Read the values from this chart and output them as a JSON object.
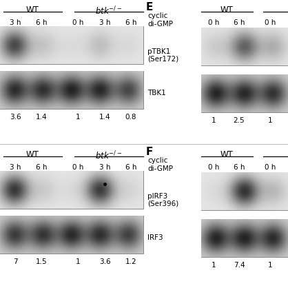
{
  "bg_color": "#ffffff",
  "fig_width": 4.18,
  "fig_height": 4.18,
  "dpi": 100,
  "left_top": {
    "wt_label": "WT",
    "btk_label": "btk⁻∕⁻",
    "tp_wt": [
      "3 h",
      "6 h"
    ],
    "tp_btk": [
      "0 h",
      "3 h",
      "6 h"
    ],
    "band1_intensities": [
      0.72,
      0.15,
      0.05,
      0.18,
      0.06
    ],
    "band2_intensities": [
      0.75,
      0.72,
      0.78,
      0.76,
      0.62
    ],
    "numbers": [
      "3.6",
      "1.4",
      "1",
      "1.4",
      "0.8"
    ]
  },
  "left_bottom": {
    "wt_label": "WT",
    "btk_label": "btk⁻∕⁻",
    "tp_wt": [
      "3 h",
      "6 h"
    ],
    "tp_btk": [
      "0 h",
      "3 h",
      "6 h"
    ],
    "band1_intensities": [
      0.8,
      0.12,
      0.05,
      0.78,
      0.08
    ],
    "band2_intensities": [
      0.68,
      0.7,
      0.75,
      0.73,
      0.65
    ],
    "numbers": [
      "7",
      "1.5",
      "1",
      "3.6",
      "1.2"
    ],
    "dot_lane": 3
  },
  "right_top": {
    "letter": "E",
    "label1": "cyclic",
    "label2": "di-GMP",
    "label3": "pTBK1",
    "label4": "(Ser172)",
    "label5": "TBK1",
    "wt_label": "WT",
    "tp_wt": [
      "0 h",
      "6 h"
    ],
    "tp_btk": [
      "0 h"
    ],
    "band1_intensities": [
      0.12,
      0.6,
      0.25
    ],
    "band2_intensities": [
      0.78,
      0.76,
      0.72
    ],
    "numbers": [
      "1",
      "2.5",
      "1"
    ]
  },
  "right_bottom": {
    "letter": "F",
    "label1": "cyclic",
    "label2": "di-GMP",
    "label3": "pIRF3",
    "label4": "(Ser396)",
    "label5": "IRF3",
    "wt_label": "WT",
    "tp_wt": [
      "0 h",
      "6 h"
    ],
    "tp_btk": [
      "0 h"
    ],
    "band1_intensities": [
      0.05,
      0.82,
      0.2
    ],
    "band2_intensities": [
      0.78,
      0.78,
      0.75
    ],
    "numbers": [
      "1",
      "7.4",
      "1"
    ]
  }
}
